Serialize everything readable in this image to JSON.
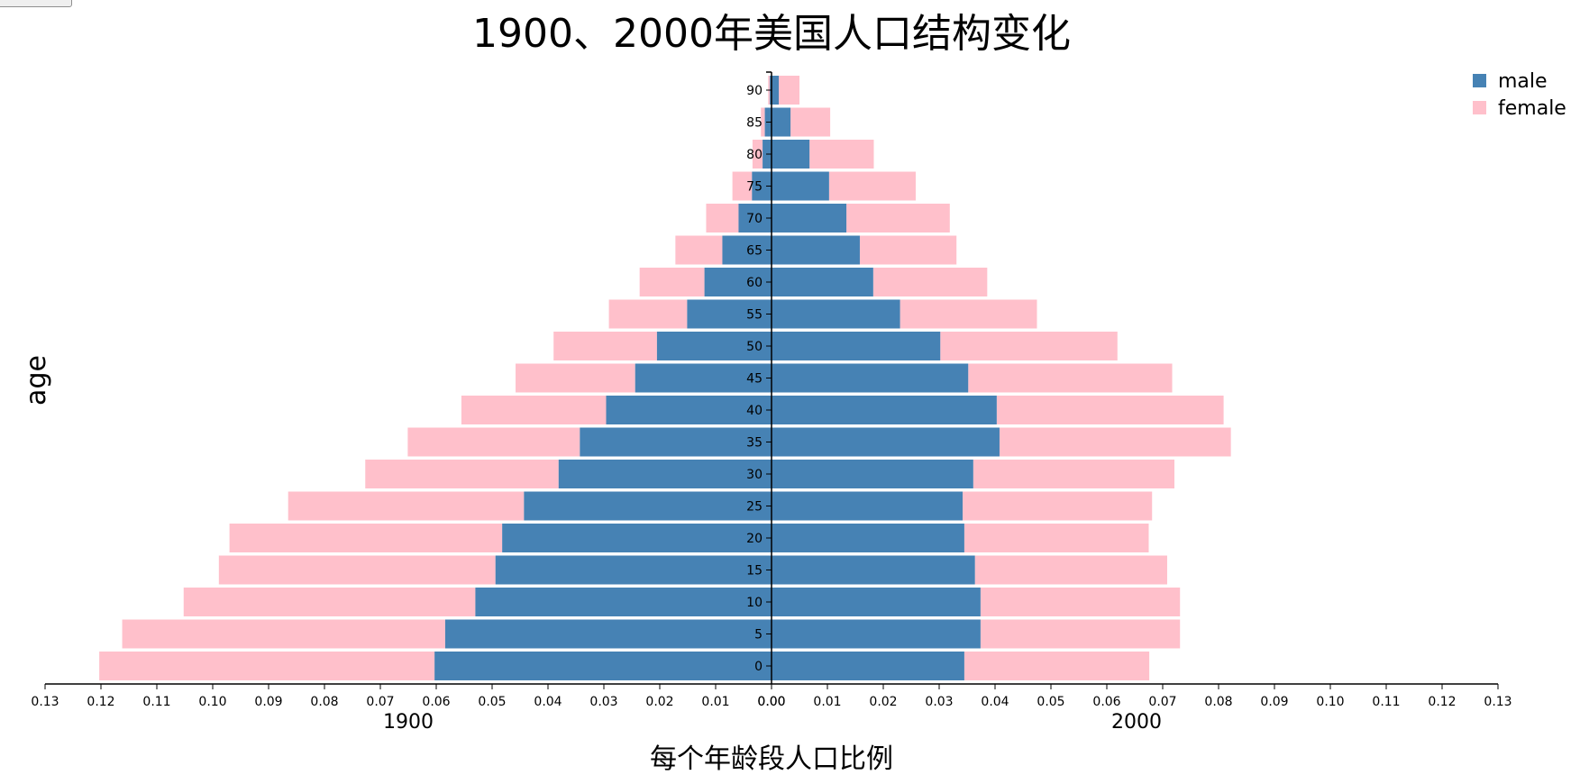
{
  "chart_data": {
    "type": "bar",
    "title": "1900、2000年美国人口结构变化",
    "xlabel": "每个年龄段人口比例",
    "ylabel": "age",
    "xlim": [
      0,
      0.13
    ],
    "x_ticks": [
      "0.13",
      "0.12",
      "0.11",
      "0.10",
      "0.09",
      "0.08",
      "0.07",
      "0.06",
      "0.05",
      "0.04",
      "0.03",
      "0.02",
      "0.01",
      "0.00",
      "0.00",
      "0.01",
      "0.02",
      "0.03",
      "0.04",
      "0.05",
      "0.06",
      "0.07",
      "0.08",
      "0.09",
      "0.10",
      "0.11",
      "0.12",
      "0.13"
    ],
    "legend_position": "top-right",
    "stacked": true,
    "categories": [
      "90",
      "85",
      "80",
      "75",
      "70",
      "65",
      "60",
      "55",
      "50",
      "45",
      "40",
      "35",
      "30",
      "25",
      "20",
      "15",
      "10",
      "5",
      "0"
    ],
    "panels": [
      {
        "name": "1900",
        "side": "left",
        "series": [
          {
            "name": "male",
            "values": [
              0.0003,
              0.0012,
              0.0016,
              0.0035,
              0.0059,
              0.0088,
              0.012,
              0.0151,
              0.0205,
              0.0244,
              0.0296,
              0.0343,
              0.0381,
              0.0443,
              0.0482,
              0.0494,
              0.053,
              0.0584,
              0.0603
            ]
          },
          {
            "name": "female",
            "values": [
              0.0003,
              0.0007,
              0.0018,
              0.0035,
              0.0058,
              0.0084,
              0.0116,
              0.014,
              0.0185,
              0.0214,
              0.0259,
              0.0308,
              0.0346,
              0.0422,
              0.0488,
              0.0495,
              0.0522,
              0.0578,
              0.06
            ]
          }
        ]
      },
      {
        "name": "2000",
        "side": "right",
        "series": [
          {
            "name": "male",
            "values": [
              0.0013,
              0.0034,
              0.0068,
              0.0103,
              0.0134,
              0.0158,
              0.0182,
              0.023,
              0.0302,
              0.0352,
              0.0403,
              0.0408,
              0.0361,
              0.0342,
              0.0345,
              0.0364,
              0.0374,
              0.0374,
              0.0345
            ]
          },
          {
            "name": "female",
            "values": [
              0.0037,
              0.0071,
              0.0115,
              0.0155,
              0.0185,
              0.0173,
              0.0204,
              0.0245,
              0.0317,
              0.0365,
              0.0406,
              0.0414,
              0.036,
              0.0339,
              0.033,
              0.0344,
              0.0357,
              0.0357,
              0.0331
            ]
          }
        ]
      }
    ]
  },
  "colors": {
    "male": "#4682b4",
    "female": "#ffc0cb",
    "axis": "#000000"
  }
}
